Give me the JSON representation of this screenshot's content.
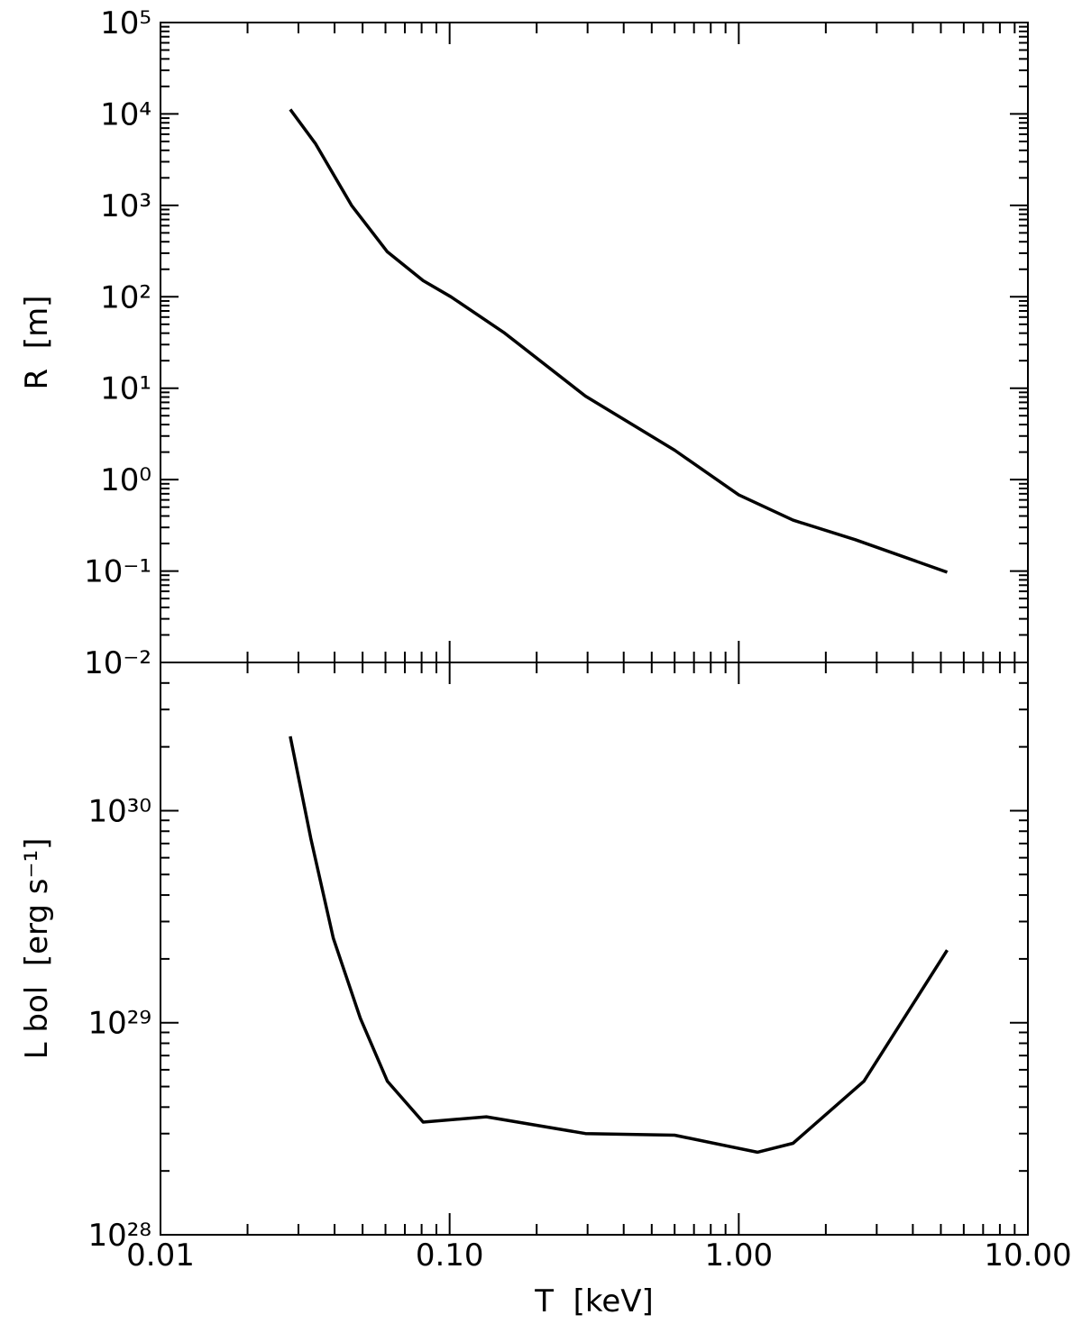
{
  "chart_data": [
    {
      "type": "line",
      "y_label": "R  [m]",
      "log_x": true,
      "log_y": true,
      "color": "#000000",
      "xlim": [
        0.01,
        10
      ],
      "x": [
        0.0281,
        0.0344,
        0.0458,
        0.0609,
        0.081,
        0.101,
        0.155,
        0.295,
        0.6,
        1.0,
        1.54,
        2.53,
        5.26
      ],
      "values": [
        11200,
        4700,
        1000,
        310,
        150,
        100,
        40,
        8.2,
        2.1,
        0.68,
        0.36,
        0.22,
        0.097
      ],
      "ylim": [
        0.01,
        100000
      ],
      "yticks": [
        {
          "value": 0.01,
          "label": "10⁻²"
        },
        {
          "value": 0.1,
          "label": "10⁻¹"
        },
        {
          "value": 1,
          "label": "10⁰"
        },
        {
          "value": 10,
          "label": "10¹"
        },
        {
          "value": 100,
          "label": "10²"
        },
        {
          "value": 1000,
          "label": "10³"
        },
        {
          "value": 10000,
          "label": "10⁴"
        },
        {
          "value": 100000,
          "label": "10⁵"
        }
      ]
    },
    {
      "type": "line",
      "y_label": "L bol  [erg s⁻¹]",
      "x_label": "T  [keV]",
      "log_x": true,
      "log_y": true,
      "color": "#000000",
      "xlim": [
        0.01,
        10
      ],
      "xticks": [
        0.01,
        {
          "value": 0.1,
          "label": "0.10"
        },
        {
          "value": 1,
          "label": "1.00"
        },
        {
          "value": 10,
          "label": "10.00"
        }
      ],
      "x": [
        0.0281,
        0.0331,
        0.0396,
        0.0491,
        0.0609,
        0.081,
        0.134,
        0.295,
        0.6,
        1.16,
        1.54,
        2.71,
        5.26
      ],
      "values": [
        2.24e+30,
        7.4e+29,
        2.5e+29,
        1.05e+29,
        5.3e+28,
        3.4e+28,
        3.6e+28,
        3e+28,
        2.95e+28,
        2.45e+28,
        2.7e+28,
        5.3e+28,
        2.2e+29
      ],
      "ylim": [
        1e+28,
        5e+30
      ],
      "yticks": [
        {
          "value": 1e+28,
          "label": "10²⁸"
        },
        {
          "value": 1e+29,
          "label": "10²⁹"
        },
        {
          "value": 1e+30,
          "label": "10³⁰"
        }
      ]
    }
  ]
}
